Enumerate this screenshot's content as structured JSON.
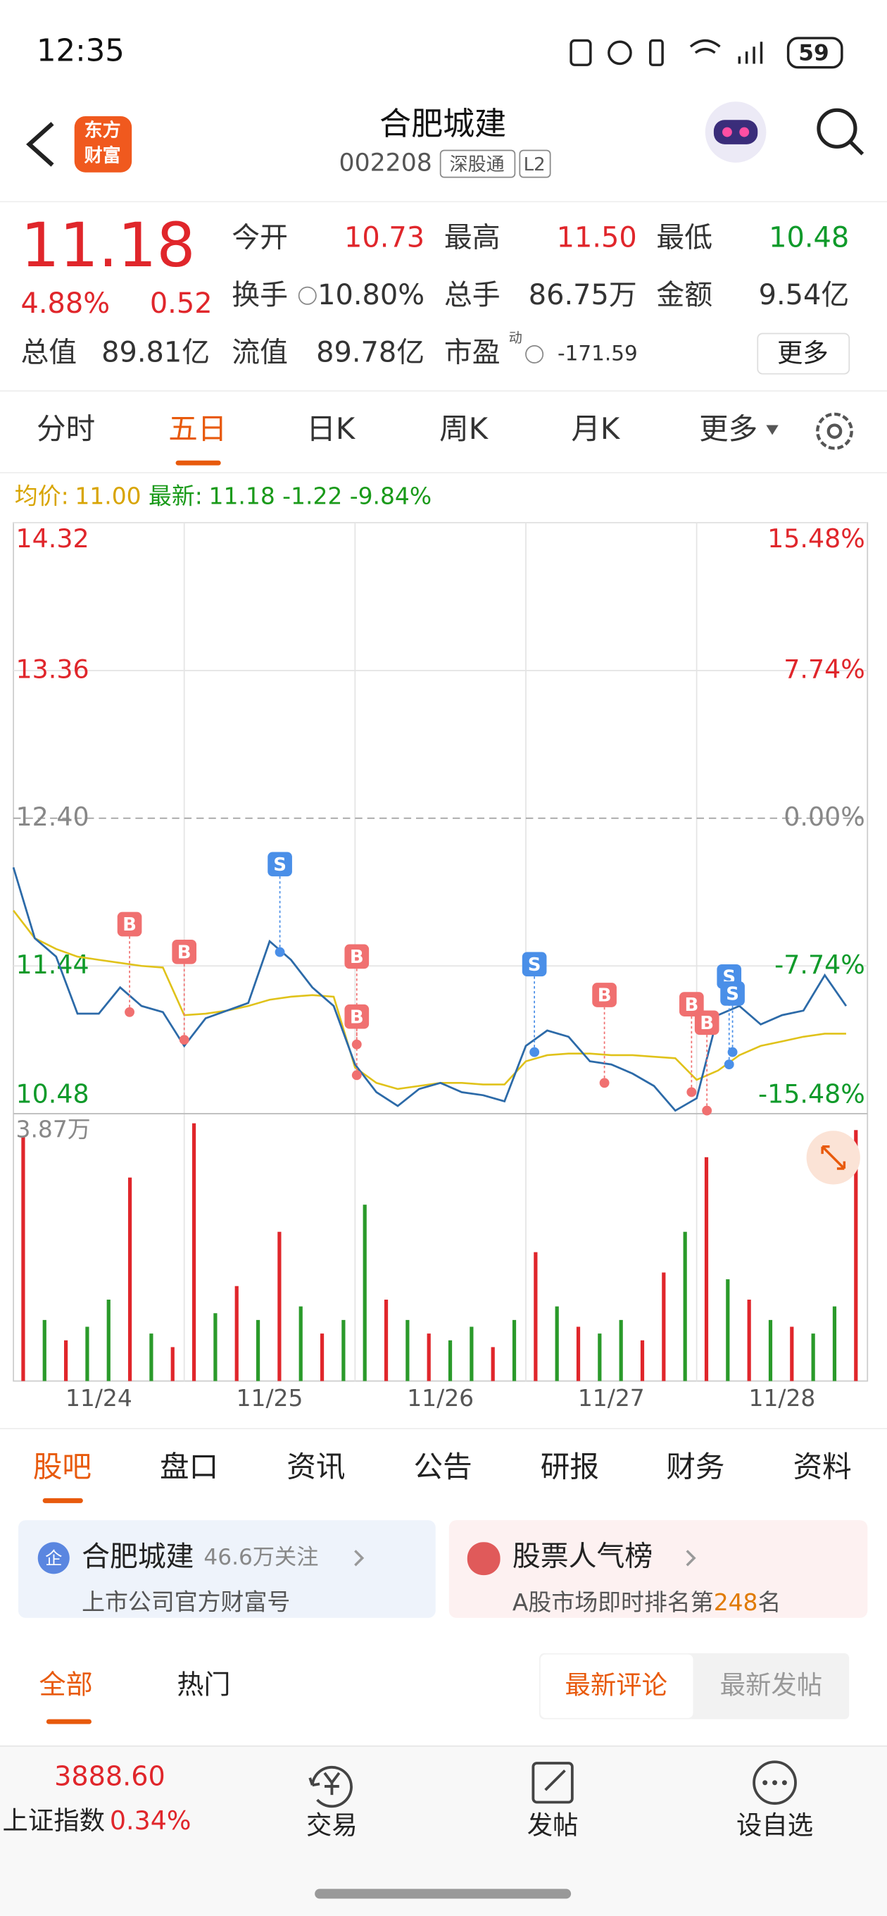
{
  "status": {
    "time": "12:35",
    "battery": "59"
  },
  "header": {
    "logo": [
      "东方",
      "财富"
    ],
    "title": "合肥城建",
    "code": "002208",
    "tags": [
      "深股通",
      "L2"
    ]
  },
  "quote": {
    "price": "11.18",
    "change_pct": "4.88%",
    "change": "0.52",
    "fields": [
      {
        "label": "今开",
        "value": "10.73"
      },
      {
        "label": "最高",
        "value": "11.50"
      },
      {
        "label": "最低",
        "value": "10.48"
      },
      {
        "label": "换手",
        "value": "10.80%"
      },
      {
        "label": "总手",
        "value": "86.75万"
      },
      {
        "label": "金额",
        "value": "9.54亿"
      },
      {
        "label": "总值",
        "value": "89.81亿"
      },
      {
        "label": "流值",
        "value": "89.78亿"
      },
      {
        "label": "市盈",
        "value": "-171.59",
        "sup": "动"
      }
    ],
    "more": "更多"
  },
  "tabs": {
    "items": [
      "分时",
      "五日",
      "日K",
      "周K",
      "月K",
      "更多"
    ],
    "active": 1
  },
  "legend": {
    "avg_label": "均价:",
    "avg": "11.00",
    "latest_label": "最新:",
    "latest": "11.18",
    "change": "-1.22",
    "change_pct": "-9.84%"
  },
  "chart_data": {
    "type": "line",
    "categories": [
      "11/24",
      "11/25",
      "11/26",
      "11/27",
      "11/28"
    ],
    "xlim": [
      0,
      5
    ],
    "x": [
      0,
      0.125,
      0.25,
      0.375,
      0.5,
      0.625,
      0.75,
      0.875,
      1,
      1.125,
      1.25,
      1.375,
      1.5,
      1.625,
      1.75,
      1.875,
      2,
      2.125,
      2.25,
      2.375,
      2.5,
      2.625,
      2.75,
      2.875,
      3,
      3.125,
      3.25,
      3.375,
      3.5,
      3.625,
      3.75,
      3.875,
      4,
      4.125,
      4.25,
      4.375,
      4.5,
      4.625,
      4.75,
      4.875
    ],
    "ylim": [
      10.48,
      14.32
    ],
    "yticks": [
      14.32,
      13.36,
      {
        "value": 12.4,
        "label": "12.40"
      },
      11.44,
      10.48
    ],
    "y2lim": [
      -15.48,
      15.48
    ],
    "y2ticks": [
      {
        "value": 15.48,
        "label": "15.48%"
      },
      {
        "value": 7.74,
        "label": "7.74%"
      },
      {
        "value": 0,
        "label": "0.00%"
      },
      {
        "value": -7.74,
        "label": "-7.74%"
      },
      {
        "value": -15.48,
        "label": "-15.48%"
      }
    ],
    "series": [
      {
        "color": "#2c6aa8",
        "values": [
          12.08,
          11.62,
          11.5,
          11.13,
          11.13,
          11.3,
          11.18,
          11.14,
          10.92,
          11.1,
          11.15,
          11.2,
          11.6,
          11.48,
          11.3,
          11.18,
          10.8,
          10.62,
          10.53,
          10.64,
          10.68,
          10.62,
          10.6,
          10.56,
          10.92,
          11.02,
          10.98,
          10.82,
          10.8,
          10.74,
          10.66,
          10.5,
          10.58,
          11.12,
          11.18,
          11.06,
          11.12,
          11.15,
          11.38,
          11.18
        ]
      },
      {
        "color": "#e0c21a",
        "values": [
          11.8,
          11.62,
          11.55,
          11.5,
          11.48,
          11.46,
          11.44,
          11.43,
          11.12,
          11.13,
          11.15,
          11.18,
          11.22,
          11.24,
          11.25,
          11.24,
          10.78,
          10.68,
          10.64,
          10.66,
          10.68,
          10.68,
          10.67,
          10.67,
          10.82,
          10.86,
          10.87,
          10.87,
          10.86,
          10.86,
          10.85,
          10.84,
          10.7,
          10.76,
          10.86,
          10.92,
          10.95,
          10.98,
          11.0,
          11.0
        ]
      }
    ],
    "annotations": [
      {
        "text": "B",
        "x": 0.68,
        "y": 11.14
      },
      {
        "text": "B",
        "x": 1.0,
        "y": 10.96
      },
      {
        "text": "S",
        "x": 1.56,
        "y": 11.53
      },
      {
        "text": "B",
        "x": 2.01,
        "y": 10.93
      },
      {
        "text": "B",
        "x": 2.01,
        "y": 10.73
      },
      {
        "text": "S",
        "x": 3.05,
        "y": 10.88
      },
      {
        "text": "B",
        "x": 3.46,
        "y": 10.68
      },
      {
        "text": "B",
        "x": 3.97,
        "y": 10.62
      },
      {
        "text": "B",
        "x": 4.06,
        "y": 10.5
      },
      {
        "text": "S",
        "x": 4.19,
        "y": 10.8
      },
      {
        "text": "S",
        "x": 4.21,
        "y": 10.88
      }
    ],
    "volume": {
      "label": "3.87万",
      "ylim": [
        0,
        3.87
      ],
      "values": [
        3.6,
        0.9,
        0.6,
        0.8,
        1.2,
        3.0,
        0.7,
        0.5,
        3.8,
        1.0,
        1.4,
        0.9,
        2.2,
        1.1,
        0.7,
        0.9,
        2.6,
        1.2,
        0.9,
        0.7,
        0.6,
        0.8,
        0.5,
        0.9,
        1.9,
        1.1,
        0.8,
        0.7,
        0.9,
        0.6,
        1.6,
        2.2,
        3.3,
        1.5,
        1.2,
        0.9,
        0.8,
        0.7,
        1.1,
        3.7
      ],
      "up": [
        true,
        false,
        true,
        false,
        false,
        true,
        false,
        true,
        true,
        false,
        true,
        false,
        true,
        false,
        true,
        false,
        false,
        true,
        false,
        true,
        false,
        false,
        true,
        false,
        true,
        false,
        true,
        false,
        false,
        true,
        true,
        false,
        true,
        false,
        true,
        false,
        true,
        false,
        false,
        true
      ]
    }
  },
  "section_tabs": {
    "items": [
      "股吧",
      "盘口",
      "资讯",
      "公告",
      "研报",
      "财务",
      "资料"
    ],
    "active": 0
  },
  "cards": [
    {
      "badge": "企",
      "title": "合肥城建",
      "follow": "46.6万关注",
      "sub": "上市公司官方财富号"
    },
    {
      "title": "股票人气榜",
      "sub": [
        "A股市场即时排名第",
        "248",
        "名"
      ]
    }
  ],
  "filters": {
    "items": [
      "全部",
      "热门"
    ],
    "sort": [
      "最新评论",
      "最新发帖"
    ]
  },
  "bottom_bar": {
    "index_value": "3888.60",
    "index_name": "上证指数",
    "index_pct": "0.34%",
    "items": [
      "交易",
      "发帖",
      "设自选"
    ]
  }
}
